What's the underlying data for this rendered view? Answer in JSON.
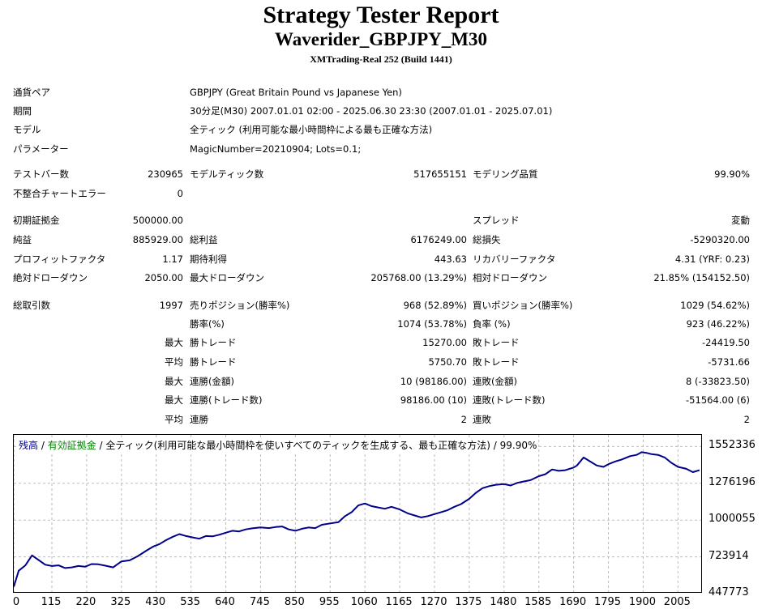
{
  "report": {
    "title": "Strategy Tester Report",
    "subtitle": "Waverider_GBPJPY_M30",
    "server": "XMTrading-Real 252 (Build 1441)"
  },
  "info": {
    "pair_label": "通貨ペア",
    "pair_value": "GBPJPY (Great Britain Pound vs Japanese Yen)",
    "period_label": "期間",
    "period_value": "30分足(M30) 2007.01.01 02:00 - 2025.06.30 23:30 (2007.01.01 - 2025.07.01)",
    "model_label": "モデル",
    "model_value": "全ティック (利用可能な最小時間枠による最も正確な方法)",
    "params_label": "パラメーター",
    "params_value": "MagicNumber=20210904; Lots=0.1;"
  },
  "stats": {
    "bars_label": "テストバー数",
    "bars_value": "230965",
    "ticks_label": "モデルティック数",
    "ticks_value": "517655151",
    "quality_label": "モデリング品質",
    "quality_value": "99.90%",
    "mismatch_label": "不整合チャートエラー",
    "mismatch_value": "0",
    "deposit_label": "初期証拠金",
    "deposit_value": "500000.00",
    "spread_label": "スプレッド",
    "spread_value": "変動",
    "net_label": "純益",
    "net_value": "885929.00",
    "gross_profit_label": "総利益",
    "gross_profit_value": "6176249.00",
    "gross_loss_label": "総損失",
    "gross_loss_value": "-5290320.00",
    "pf_label": "プロフィットファクタ",
    "pf_value": "1.17",
    "expected_label": "期待利得",
    "expected_value": "443.63",
    "recovery_label": "リカバリーファクタ",
    "recovery_value": "4.31 (YRF: 0.23)",
    "abs_dd_label": "絶対ドローダウン",
    "abs_dd_value": "2050.00",
    "max_dd_label": "最大ドローダウン",
    "max_dd_value": "205768.00 (13.29%)",
    "rel_dd_label": "相対ドローダウン",
    "rel_dd_value": "21.85% (154152.50)",
    "total_label": "総取引数",
    "total_value": "1997",
    "short_label": "売りポジション(勝率%)",
    "short_value": "968 (52.89%)",
    "long_label": "買いポジション(勝率%)",
    "long_value": "1029 (54.62%)",
    "winrate_label": "勝率(%)",
    "winrate_value": "1074 (53.78%)",
    "lossrate_label": "負率 (%)",
    "lossrate_value": "923 (46.22%)",
    "max_label": "最大",
    "avg_label": "平均",
    "largest_win_label": "勝トレード",
    "largest_win_value": "15270.00",
    "largest_loss_label": "敗トレード",
    "largest_loss_value": "-24419.50",
    "avg_win_label": "勝トレード",
    "avg_win_value": "5750.70",
    "avg_loss_label": "敗トレード",
    "avg_loss_value": "-5731.66",
    "max_consec_win_money_label": "連勝(金額)",
    "max_consec_win_money_value": "10 (98186.00)",
    "max_consec_loss_money_label": "連敗(金額)",
    "max_consec_loss_money_value": "8 (-33823.50)",
    "max_consec_win_count_label": "連勝(トレード数)",
    "max_consec_win_count_value": "98186.00 (10)",
    "max_consec_loss_count_label": "連敗(トレード数)",
    "max_consec_loss_count_value": "-51564.00 (6)",
    "avg_consec_win_label": "連勝",
    "avg_consec_win_value": "2",
    "avg_consec_loss_label": "連敗",
    "avg_consec_loss_value": "2"
  },
  "chart_data": {
    "type": "line",
    "legend": {
      "balance": "残高",
      "sep1": " / ",
      "equity": "有効証拠金",
      "sep2": " / ",
      "model_text": "全ティック(利用可能な最小時間枠を使いすべてのティックを生成する、最も正確な方法) / 99.90%"
    },
    "colors": {
      "balance": "#00008b",
      "equity": "#008000"
    },
    "y_ticks": [
      "1552336",
      "1276196",
      "1000055",
      "723914",
      "447773"
    ],
    "y_tick_values": [
      1552336,
      1276196,
      1000055,
      723914,
      447773
    ],
    "x_ticks": [
      "0",
      "115",
      "220",
      "325",
      "430",
      "535",
      "640",
      "745",
      "850",
      "955",
      "1060",
      "1165",
      "1270",
      "1375",
      "1480",
      "1585",
      "1690",
      "1795",
      "1900",
      "2005"
    ],
    "x_tick_values": [
      0,
      115,
      220,
      325,
      430,
      535,
      640,
      745,
      850,
      955,
      1060,
      1165,
      1270,
      1375,
      1480,
      1585,
      1690,
      1795,
      1900,
      2005
    ],
    "ylim": [
      447773,
      1640000
    ],
    "xlim": [
      0,
      2080
    ],
    "grid": true,
    "series": [
      {
        "key": "balance",
        "x": [
          0,
          15,
          35,
          55,
          75,
          95,
          115,
          135,
          155,
          175,
          195,
          215,
          235,
          255,
          275,
          300,
          325,
          350,
          375,
          400,
          420,
          440,
          460,
          480,
          500,
          520,
          540,
          560,
          580,
          600,
          620,
          640,
          660,
          680,
          700,
          720,
          745,
          770,
          790,
          810,
          830,
          850,
          870,
          890,
          910,
          930,
          955,
          980,
          1000,
          1020,
          1040,
          1060,
          1080,
          1100,
          1120,
          1140,
          1165,
          1190,
          1210,
          1230,
          1250,
          1270,
          1290,
          1310,
          1330,
          1350,
          1375,
          1395,
          1415,
          1435,
          1455,
          1480,
          1500,
          1520,
          1540,
          1560,
          1585,
          1605,
          1625,
          1645,
          1665,
          1690,
          1700,
          1720,
          1740,
          1760,
          1780,
          1795,
          1815,
          1835,
          1860,
          1880,
          1895,
          1910,
          1925,
          1945,
          1965,
          1985,
          2005,
          2030,
          2050,
          2070
        ],
        "y": [
          500000,
          620000,
          660000,
          735000,
          700000,
          665000,
          655000,
          660000,
          640000,
          645000,
          655000,
          650000,
          670000,
          668000,
          658000,
          645000,
          690000,
          698000,
          730000,
          770000,
          800000,
          820000,
          850000,
          875000,
          895000,
          880000,
          870000,
          860000,
          880000,
          878000,
          890000,
          905000,
          920000,
          915000,
          930000,
          938000,
          945000,
          940000,
          948000,
          952000,
          930000,
          920000,
          935000,
          945000,
          940000,
          965000,
          975000,
          985000,
          1030000,
          1060000,
          1110000,
          1125000,
          1105000,
          1095000,
          1085000,
          1100000,
          1080000,
          1050000,
          1035000,
          1020000,
          1030000,
          1045000,
          1060000,
          1075000,
          1100000,
          1120000,
          1160000,
          1205000,
          1240000,
          1255000,
          1265000,
          1270000,
          1260000,
          1280000,
          1290000,
          1300000,
          1330000,
          1345000,
          1380000,
          1370000,
          1375000,
          1395000,
          1410000,
          1470000,
          1440000,
          1410000,
          1400000,
          1420000,
          1440000,
          1455000,
          1480000,
          1490000,
          1510000,
          1505000,
          1495000,
          1490000,
          1470000,
          1430000,
          1400000,
          1385000,
          1360000,
          1375000
        ]
      }
    ]
  }
}
